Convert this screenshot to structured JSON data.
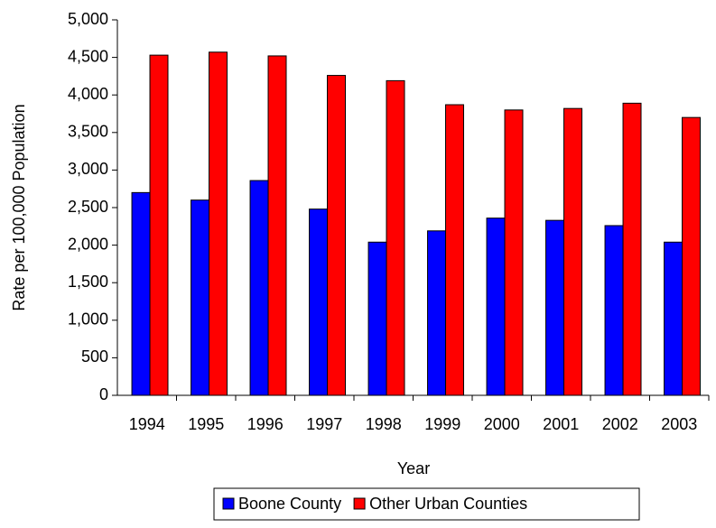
{
  "chart_data": {
    "type": "bar",
    "categories": [
      "1994",
      "1995",
      "1996",
      "1997",
      "1998",
      "1999",
      "2000",
      "2001",
      "2002",
      "2003"
    ],
    "series": [
      {
        "name": "Boone County",
        "color": "#0000ff",
        "values": [
          2700,
          2600,
          2860,
          2480,
          2040,
          2190,
          2360,
          2330,
          2260,
          2040
        ]
      },
      {
        "name": "Other Urban Counties",
        "color": "#ff0000",
        "values": [
          4530,
          4570,
          4520,
          4260,
          4190,
          3870,
          3800,
          3820,
          3890,
          3700
        ]
      }
    ],
    "xlabel": "Year",
    "ylabel": "Rate per 100,000 Population",
    "ylim": [
      0,
      5000
    ],
    "yticks": [
      0,
      500,
      {
        "value": 1000,
        "label": "1,000"
      },
      {
        "value": 1500,
        "label": "1,500"
      },
      {
        "value": 2000,
        "label": "2,000"
      },
      {
        "value": 2500,
        "label": "2,500"
      },
      {
        "value": 3000,
        "label": "3,000"
      },
      {
        "value": 3500,
        "label": "3,500"
      },
      {
        "value": 4000,
        "label": "4,000"
      },
      {
        "value": 4500,
        "label": "4,500"
      },
      {
        "value": 5000,
        "label": "5,000"
      }
    ],
    "legend": "bottom"
  }
}
